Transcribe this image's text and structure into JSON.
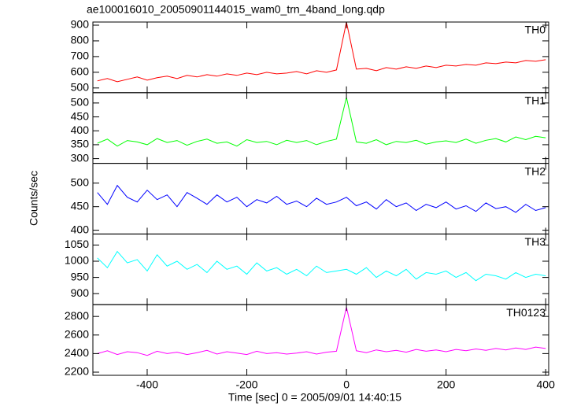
{
  "title": "ae100016010_20050901144015_wam0_trn_4band_long.qdp",
  "y_label": "Counts/sec",
  "x_label": "Time [sec] 0 = 2005/09/01 14:40:15",
  "chart_data": [
    {
      "type": "line",
      "name": "TH0",
      "color": "#ff0000",
      "x": [
        -500,
        -480,
        -460,
        -440,
        -420,
        -400,
        -380,
        -360,
        -340,
        -320,
        -300,
        -280,
        -260,
        -240,
        -220,
        -200,
        -180,
        -160,
        -140,
        -120,
        -100,
        -80,
        -60,
        -40,
        -20,
        0,
        20,
        40,
        60,
        80,
        100,
        120,
        140,
        160,
        180,
        200,
        220,
        240,
        260,
        280,
        300,
        320,
        340,
        360,
        380,
        400
      ],
      "values": [
        545,
        560,
        540,
        555,
        570,
        550,
        565,
        575,
        560,
        580,
        570,
        585,
        575,
        590,
        580,
        595,
        585,
        600,
        590,
        595,
        605,
        590,
        610,
        600,
        615,
        920,
        620,
        625,
        610,
        630,
        620,
        635,
        625,
        640,
        630,
        645,
        640,
        650,
        645,
        660,
        655,
        665,
        660,
        675,
        670,
        680
      ],
      "ylim": [
        470,
        920
      ],
      "yticks": [
        500,
        600,
        700,
        800,
        900
      ]
    },
    {
      "type": "line",
      "name": "TH1",
      "color": "#00ff00",
      "x": [
        -500,
        -480,
        -460,
        -440,
        -420,
        -400,
        -380,
        -360,
        -340,
        -320,
        -300,
        -280,
        -260,
        -240,
        -220,
        -200,
        -180,
        -160,
        -140,
        -120,
        -100,
        -80,
        -60,
        -40,
        -20,
        0,
        20,
        40,
        60,
        80,
        100,
        120,
        140,
        160,
        180,
        200,
        220,
        240,
        260,
        280,
        300,
        320,
        340,
        360,
        380,
        400
      ],
      "values": [
        355,
        370,
        345,
        365,
        360,
        350,
        372,
        358,
        365,
        348,
        362,
        370,
        355,
        360,
        345,
        368,
        358,
        362,
        350,
        366,
        358,
        365,
        350,
        362,
        370,
        520,
        360,
        355,
        368,
        350,
        362,
        358,
        366,
        352,
        360,
        364,
        358,
        370,
        355,
        366,
        372,
        360,
        378,
        368,
        380,
        375
      ],
      "ylim": [
        283,
        537
      ],
      "yticks": [
        300,
        350,
        400,
        450,
        500
      ]
    },
    {
      "type": "line",
      "name": "TH2",
      "color": "#0000ff",
      "x": [
        -500,
        -480,
        -460,
        -440,
        -420,
        -400,
        -380,
        -360,
        -340,
        -320,
        -300,
        -280,
        -260,
        -240,
        -220,
        -200,
        -180,
        -160,
        -140,
        -120,
        -100,
        -80,
        -60,
        -40,
        -20,
        0,
        20,
        40,
        60,
        80,
        100,
        120,
        140,
        160,
        180,
        200,
        220,
        240,
        260,
        280,
        300,
        320,
        340,
        360,
        380,
        400
      ],
      "values": [
        480,
        455,
        495,
        470,
        460,
        485,
        465,
        475,
        450,
        480,
        468,
        455,
        475,
        460,
        470,
        450,
        465,
        458,
        472,
        455,
        462,
        450,
        468,
        455,
        460,
        470,
        452,
        460,
        445,
        465,
        450,
        458,
        442,
        455,
        448,
        460,
        445,
        452,
        440,
        458,
        446,
        450,
        438,
        455,
        442,
        448
      ],
      "ylim": [
        392,
        542
      ],
      "yticks": [
        400,
        450,
        500
      ]
    },
    {
      "type": "line",
      "name": "TH3",
      "color": "#00ffff",
      "x": [
        -500,
        -480,
        -460,
        -440,
        -420,
        -400,
        -380,
        -360,
        -340,
        -320,
        -300,
        -280,
        -260,
        -240,
        -220,
        -200,
        -180,
        -160,
        -140,
        -120,
        -100,
        -80,
        -60,
        -40,
        -20,
        0,
        20,
        40,
        60,
        80,
        100,
        120,
        140,
        160,
        180,
        200,
        220,
        240,
        260,
        280,
        300,
        320,
        340,
        360,
        380,
        400
      ],
      "values": [
        1010,
        980,
        1030,
        995,
        1005,
        970,
        1020,
        985,
        1000,
        975,
        990,
        965,
        1000,
        975,
        985,
        960,
        995,
        970,
        980,
        960,
        975,
        955,
        985,
        965,
        970,
        975,
        960,
        980,
        950,
        970,
        955,
        975,
        945,
        965,
        960,
        970,
        950,
        965,
        940,
        960,
        955,
        945,
        965,
        950,
        960,
        955
      ],
      "ylim": [
        866,
        1084
      ],
      "yticks": [
        900,
        950,
        1000,
        1050
      ]
    },
    {
      "type": "line",
      "name": "TH0123",
      "color": "#ff00ff",
      "x": [
        -500,
        -480,
        -460,
        -440,
        -420,
        -400,
        -380,
        -360,
        -340,
        -320,
        -300,
        -280,
        -260,
        -240,
        -220,
        -200,
        -180,
        -160,
        -140,
        -120,
        -100,
        -80,
        -60,
        -40,
        -20,
        0,
        20,
        40,
        60,
        80,
        100,
        120,
        140,
        160,
        180,
        200,
        220,
        240,
        260,
        280,
        300,
        320,
        340,
        360,
        380,
        400
      ],
      "values": [
        2400,
        2430,
        2390,
        2420,
        2410,
        2380,
        2425,
        2400,
        2415,
        2390,
        2410,
        2435,
        2395,
        2420,
        2405,
        2390,
        2425,
        2400,
        2410,
        2395,
        2405,
        2420,
        2395,
        2415,
        2425,
        2900,
        2430,
        2410,
        2440,
        2420,
        2435,
        2415,
        2445,
        2425,
        2440,
        2420,
        2445,
        2430,
        2450,
        2435,
        2455,
        2440,
        2460,
        2445,
        2470,
        2455
      ],
      "ylim": [
        2166,
        2927
      ],
      "yticks": [
        2200,
        2400,
        2600,
        2800
      ],
      "xlim": [
        -509,
        406
      ],
      "xticks": [
        -400,
        -200,
        0,
        200,
        400
      ]
    }
  ]
}
